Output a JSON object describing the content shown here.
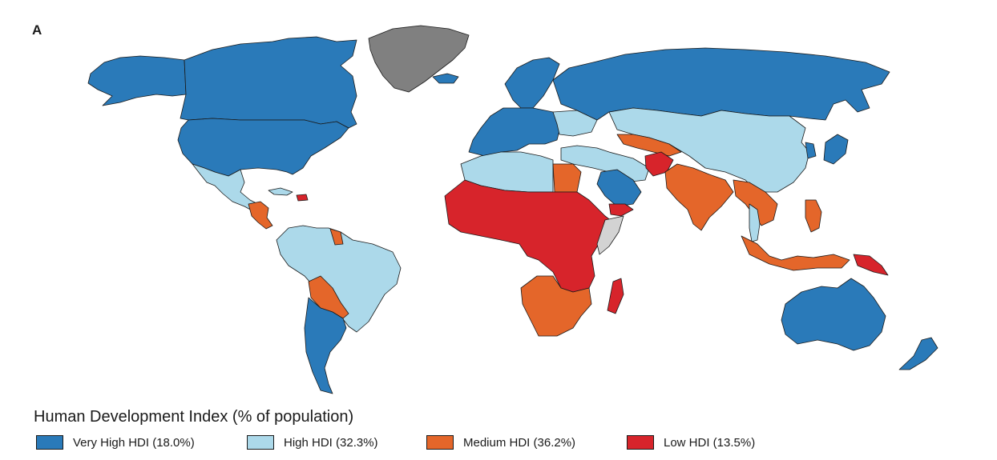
{
  "panel_label": "A",
  "legend": {
    "title": "Human Development Index (% of population)",
    "items": [
      {
        "key": "very_high",
        "label": "Very High HDI (18.0%)",
        "color": "#2a7ab9"
      },
      {
        "key": "high",
        "label": "High HDI (32.3%)",
        "color": "#acd9ea"
      },
      {
        "key": "medium",
        "label": "Medium HDI (36.2%)",
        "color": "#e4662a"
      },
      {
        "key": "low",
        "label": "Low HDI (13.5%)",
        "color": "#d7242b"
      }
    ]
  },
  "colors": {
    "no_data": "#808080",
    "unclassified": "#d3d3d3",
    "border": "#1a1a1a"
  },
  "regions": [
    {
      "id": "canada",
      "category": "very_high"
    },
    {
      "id": "alaska",
      "category": "very_high"
    },
    {
      "id": "usa",
      "category": "very_high"
    },
    {
      "id": "greenland",
      "category": "no_data"
    },
    {
      "id": "mexico",
      "category": "high"
    },
    {
      "id": "central-america",
      "category": "medium"
    },
    {
      "id": "cuba",
      "category": "high"
    },
    {
      "id": "haiti",
      "category": "low"
    },
    {
      "id": "colombia-venezuela-peru-brazil",
      "category": "high"
    },
    {
      "id": "guyana",
      "category": "medium"
    },
    {
      "id": "bolivia-paraguay",
      "category": "medium"
    },
    {
      "id": "chile-argentina",
      "category": "very_high"
    },
    {
      "id": "europe",
      "category": "very_high"
    },
    {
      "id": "iceland",
      "category": "very_high"
    },
    {
      "id": "scandinavia",
      "category": "very_high"
    },
    {
      "id": "russia",
      "category": "very_high"
    },
    {
      "id": "ukraine-belarus",
      "category": "high"
    },
    {
      "id": "kazakhstan-mongolia-china",
      "category": "high"
    },
    {
      "id": "turkey-iran",
      "category": "high"
    },
    {
      "id": "saudi-arabia",
      "category": "very_high"
    },
    {
      "id": "central-asia",
      "category": "medium"
    },
    {
      "id": "afghanistan",
      "category": "low"
    },
    {
      "id": "india-pakistan",
      "category": "medium"
    },
    {
      "id": "southeast-asia",
      "category": "medium"
    },
    {
      "id": "thailand-malaysia",
      "category": "high"
    },
    {
      "id": "indonesia",
      "category": "medium"
    },
    {
      "id": "philippines",
      "category": "medium"
    },
    {
      "id": "papua-new-guinea",
      "category": "low"
    },
    {
      "id": "japan",
      "category": "very_high"
    },
    {
      "id": "korea",
      "category": "very_high"
    },
    {
      "id": "australia",
      "category": "very_high"
    },
    {
      "id": "new-zealand",
      "category": "very_high"
    },
    {
      "id": "north-africa",
      "category": "high"
    },
    {
      "id": "egypt",
      "category": "medium"
    },
    {
      "id": "west-central-africa",
      "category": "low"
    },
    {
      "id": "somalia",
      "category": "unclassified"
    },
    {
      "id": "southern-africa",
      "category": "medium"
    },
    {
      "id": "madagascar",
      "category": "low"
    },
    {
      "id": "yemen",
      "category": "low"
    }
  ]
}
